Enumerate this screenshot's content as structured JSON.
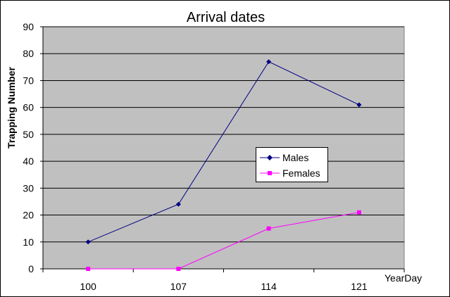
{
  "chart_data": {
    "type": "line",
    "title": "Arrival dates",
    "xlabel": "YearDay",
    "ylabel": "Trapping Number",
    "categories": [
      "100",
      "107",
      "114",
      "121"
    ],
    "ylim": [
      0,
      90
    ],
    "yticks": [
      "0",
      "10",
      "20",
      "30",
      "40",
      "50",
      "60",
      "70",
      "80",
      "90"
    ],
    "grid": true,
    "legend_position": "center-right",
    "plot_background": "#c0c0c0",
    "series": [
      {
        "name": "Males",
        "values": [
          10,
          24,
          77,
          61
        ],
        "color": "#000080",
        "marker": "diamond"
      },
      {
        "name": "Females",
        "values": [
          0,
          0,
          15,
          21
        ],
        "color": "#ff00ff",
        "marker": "square"
      }
    ]
  }
}
